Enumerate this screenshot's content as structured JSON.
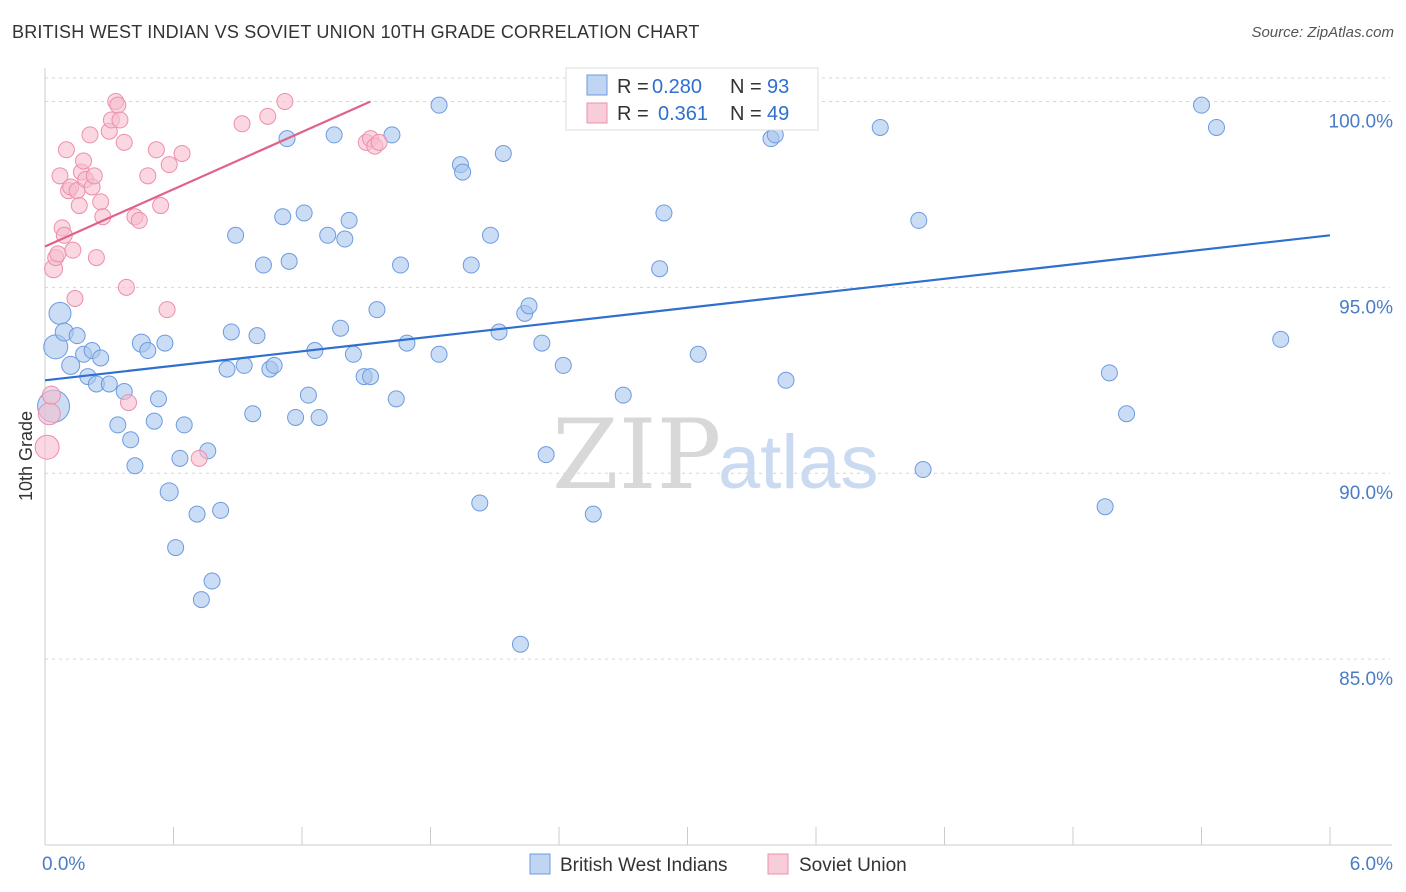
{
  "title": "BRITISH WEST INDIAN VS SOVIET UNION 10TH GRADE CORRELATION CHART",
  "source": "Source: ZipAtlas.com",
  "watermark": {
    "zip": "ZIP",
    "atlas": "atlas"
  },
  "colors": {
    "blue_fill": "#a9c7ee",
    "blue_stroke": "#6d9be0",
    "blue_line": "#2f6fcf",
    "pink_fill": "#f6bccd",
    "pink_stroke": "#ec8fab",
    "pink_line": "#e0628b",
    "axis_text": "#4a7cc7",
    "grid": "#d6d6d6"
  },
  "legend": {
    "rows": [
      {
        "series": "blue",
        "r_label": "R =",
        "r_value": "0.280",
        "n_label": "N =",
        "n_value": "93"
      },
      {
        "series": "pink",
        "r_label": "R =",
        "r_value": "0.361",
        "n_label": "N =",
        "n_value": "49"
      }
    ]
  },
  "chart_data": {
    "type": "scatter",
    "title": "BRITISH WEST INDIAN VS SOVIET UNION 10TH GRADE CORRELATION CHART",
    "xlabel": "",
    "ylabel": "10th Grade",
    "xlim": [
      0.0,
      6.0
    ],
    "ylim": [
      80.0,
      100.9
    ],
    "x_tick_labels": [
      "0.0%",
      "6.0%"
    ],
    "y_ticks": [
      85.0,
      90.0,
      95.0,
      100.0
    ],
    "y_tick_labels": [
      "85.0%",
      "90.0%",
      "95.0%",
      "100.0%"
    ],
    "grid": true,
    "legend_position": "top-center",
    "series": [
      {
        "name": "British West Indians",
        "color": "#a9c7ee",
        "R": 0.28,
        "N": 93,
        "trend": {
          "x": [
            0.0,
            6.0
          ],
          "y": [
            92.5,
            96.4
          ]
        },
        "points": [
          [
            0.04,
            91.8,
            16
          ],
          [
            0.05,
            93.4,
            12
          ],
          [
            0.07,
            94.3,
            11
          ],
          [
            0.09,
            93.8,
            9
          ],
          [
            0.12,
            92.9,
            9
          ],
          [
            0.15,
            93.7,
            8
          ],
          [
            0.18,
            93.2,
            8
          ],
          [
            0.2,
            92.6,
            8
          ],
          [
            0.22,
            93.3,
            8
          ],
          [
            0.24,
            92.4,
            8
          ],
          [
            0.26,
            93.1,
            8
          ],
          [
            0.3,
            92.4,
            8
          ],
          [
            0.34,
            91.3,
            8
          ],
          [
            0.37,
            92.2,
            8
          ],
          [
            0.4,
            90.9,
            8
          ],
          [
            0.42,
            90.2,
            8
          ],
          [
            0.45,
            93.5,
            9
          ],
          [
            0.48,
            93.3,
            8
          ],
          [
            0.51,
            91.4,
            8
          ],
          [
            0.53,
            92.0,
            8
          ],
          [
            0.56,
            93.5,
            8
          ],
          [
            0.58,
            89.5,
            9
          ],
          [
            0.61,
            88.0,
            8
          ],
          [
            0.63,
            90.4,
            8
          ],
          [
            0.65,
            91.3,
            8
          ],
          [
            0.71,
            88.9,
            8
          ],
          [
            0.73,
            86.6,
            8
          ],
          [
            0.76,
            90.6,
            8
          ],
          [
            0.78,
            87.1,
            8
          ],
          [
            0.82,
            89.0,
            8
          ],
          [
            0.85,
            92.8,
            8
          ],
          [
            0.87,
            93.8,
            8
          ],
          [
            0.89,
            96.4,
            8
          ],
          [
            0.93,
            92.9,
            8
          ],
          [
            0.97,
            91.6,
            8
          ],
          [
            0.99,
            93.7,
            8
          ],
          [
            1.02,
            95.6,
            8
          ],
          [
            1.05,
            92.8,
            8
          ],
          [
            1.07,
            92.9,
            8
          ],
          [
            1.11,
            96.9,
            8
          ],
          [
            1.13,
            99.0,
            8
          ],
          [
            1.14,
            95.7,
            8
          ],
          [
            1.17,
            91.5,
            8
          ],
          [
            1.21,
            97.0,
            8
          ],
          [
            1.23,
            92.1,
            8
          ],
          [
            1.26,
            93.3,
            8
          ],
          [
            1.28,
            91.5,
            8
          ],
          [
            1.32,
            96.4,
            8
          ],
          [
            1.35,
            99.1,
            8
          ],
          [
            1.38,
            93.9,
            8
          ],
          [
            1.4,
            96.3,
            8
          ],
          [
            1.42,
            96.8,
            8
          ],
          [
            1.44,
            93.2,
            8
          ],
          [
            1.49,
            92.6,
            8
          ],
          [
            1.52,
            92.6,
            8
          ],
          [
            1.55,
            94.4,
            8
          ],
          [
            1.62,
            99.1,
            8
          ],
          [
            1.64,
            92.0,
            8
          ],
          [
            1.66,
            95.6,
            8
          ],
          [
            1.69,
            93.5,
            8
          ],
          [
            1.84,
            93.2,
            8
          ],
          [
            1.84,
            99.9,
            8
          ],
          [
            1.94,
            98.3,
            8
          ],
          [
            1.95,
            98.1,
            8
          ],
          [
            1.99,
            95.6,
            8
          ],
          [
            2.03,
            89.2,
            8
          ],
          [
            2.08,
            96.4,
            8
          ],
          [
            2.12,
            93.8,
            8
          ],
          [
            2.14,
            98.6,
            8
          ],
          [
            2.22,
            85.4,
            8
          ],
          [
            2.24,
            94.3,
            8
          ],
          [
            2.26,
            94.5,
            8
          ],
          [
            2.32,
            93.5,
            8
          ],
          [
            2.34,
            90.5,
            8
          ],
          [
            2.42,
            92.9,
            8
          ],
          [
            2.56,
            88.9,
            8
          ],
          [
            2.7,
            92.1,
            8
          ],
          [
            2.87,
            95.5,
            8
          ],
          [
            2.89,
            97.0,
            8
          ],
          [
            3.05,
            93.2,
            8
          ],
          [
            3.39,
            99.0,
            8
          ],
          [
            3.41,
            99.1,
            8
          ],
          [
            3.46,
            92.5,
            8
          ],
          [
            3.52,
            99.9,
            8
          ],
          [
            3.9,
            99.3,
            8
          ],
          [
            4.08,
            96.8,
            8
          ],
          [
            4.1,
            90.1,
            8
          ],
          [
            4.95,
            89.1,
            8
          ],
          [
            4.97,
            92.7,
            8
          ],
          [
            5.05,
            91.6,
            8
          ],
          [
            5.4,
            99.9,
            8
          ],
          [
            5.47,
            99.3,
            8
          ],
          [
            5.77,
            93.6,
            8
          ]
        ]
      },
      {
        "name": "Soviet Union",
        "color": "#f6bccd",
        "R": 0.361,
        "N": 49,
        "trend": {
          "x": [
            0.0,
            1.52
          ],
          "y": [
            96.1,
            100.0
          ]
        },
        "points": [
          [
            0.01,
            90.7,
            12
          ],
          [
            0.02,
            91.6,
            11
          ],
          [
            0.03,
            92.1,
            9
          ],
          [
            0.04,
            95.5,
            9
          ],
          [
            0.05,
            95.8,
            8
          ],
          [
            0.06,
            95.9,
            8
          ],
          [
            0.07,
            98.0,
            8
          ],
          [
            0.08,
            96.6,
            8
          ],
          [
            0.09,
            96.4,
            8
          ],
          [
            0.1,
            98.7,
            8
          ],
          [
            0.11,
            97.6,
            8
          ],
          [
            0.12,
            97.7,
            8
          ],
          [
            0.13,
            96.0,
            8
          ],
          [
            0.14,
            94.7,
            8
          ],
          [
            0.15,
            97.6,
            8
          ],
          [
            0.16,
            97.2,
            8
          ],
          [
            0.17,
            98.1,
            8
          ],
          [
            0.18,
            98.4,
            8
          ],
          [
            0.19,
            97.9,
            8
          ],
          [
            0.21,
            99.1,
            8
          ],
          [
            0.22,
            97.7,
            8
          ],
          [
            0.23,
            98.0,
            8
          ],
          [
            0.24,
            95.8,
            8
          ],
          [
            0.26,
            97.3,
            8
          ],
          [
            0.27,
            96.9,
            8
          ],
          [
            0.3,
            99.2,
            8
          ],
          [
            0.31,
            99.5,
            8
          ],
          [
            0.33,
            100.0,
            8
          ],
          [
            0.34,
            99.9,
            8
          ],
          [
            0.35,
            99.5,
            8
          ],
          [
            0.37,
            98.9,
            8
          ],
          [
            0.38,
            95.0,
            8
          ],
          [
            0.39,
            91.9,
            8
          ],
          [
            0.42,
            96.9,
            8
          ],
          [
            0.44,
            96.8,
            8
          ],
          [
            0.48,
            98.0,
            8
          ],
          [
            0.52,
            98.7,
            8
          ],
          [
            0.54,
            97.2,
            8
          ],
          [
            0.57,
            94.4,
            8
          ],
          [
            0.58,
            98.3,
            8
          ],
          [
            0.64,
            98.6,
            8
          ],
          [
            0.72,
            90.4,
            8
          ],
          [
            0.92,
            99.4,
            8
          ],
          [
            1.04,
            99.6,
            8
          ],
          [
            1.12,
            100.0,
            8
          ],
          [
            1.5,
            98.9,
            8
          ],
          [
            1.52,
            99.0,
            8
          ],
          [
            1.54,
            98.8,
            8
          ],
          [
            1.56,
            98.9,
            8
          ]
        ]
      }
    ]
  }
}
